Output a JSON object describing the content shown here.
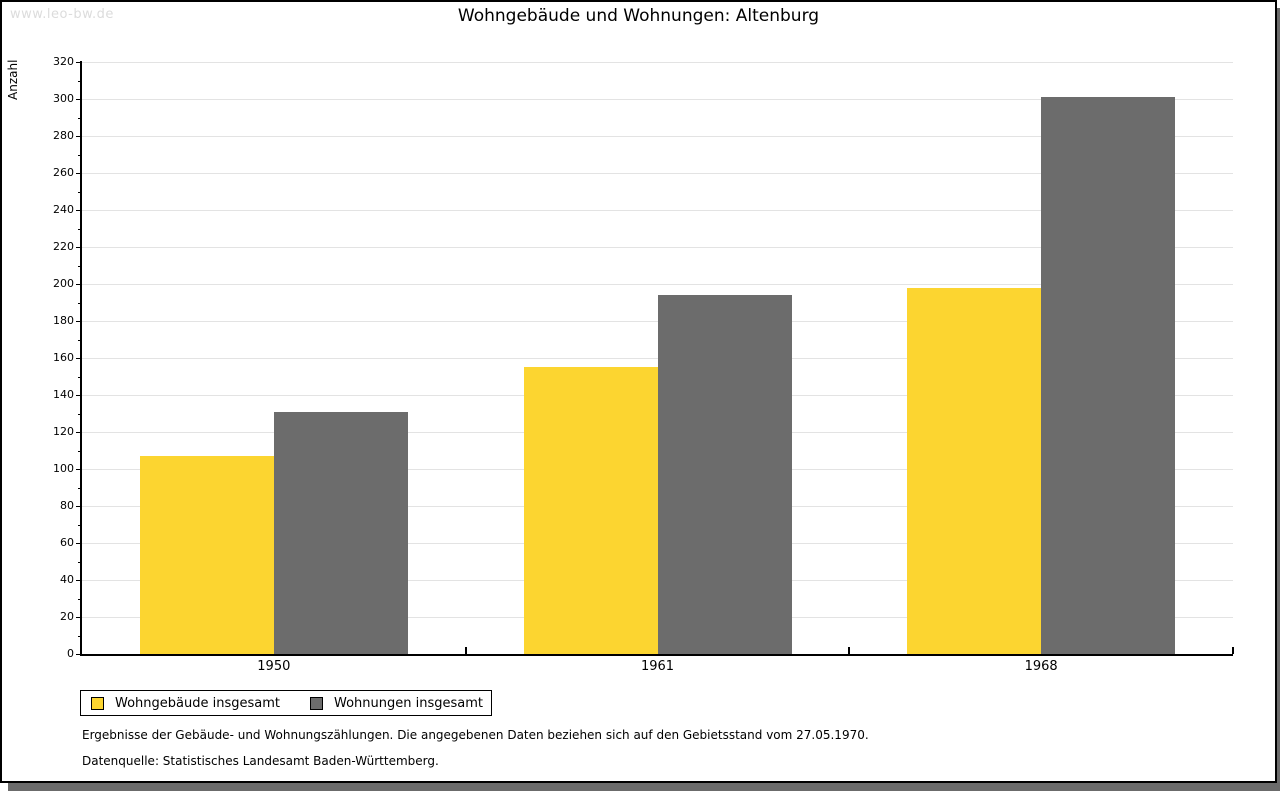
{
  "watermark": "www.leo-bw.de",
  "title": "Wohngebäude und Wohnungen: Altenburg",
  "chart_data": {
    "type": "bar",
    "title": "Wohngebäude und Wohnungen: Altenburg",
    "categories": [
      "1950",
      "1961",
      "1968"
    ],
    "series": [
      {
        "name": "Wohngebäude insgesamt",
        "color": "#fcd530",
        "values": [
          107,
          155,
          198
        ]
      },
      {
        "name": "Wohnungen insgesamt",
        "color": "#6c6c6c",
        "values": [
          131,
          194,
          301
        ]
      }
    ],
    "xlabel": "",
    "ylabel": "Anzahl",
    "ylim": [
      0,
      320
    ],
    "ytick_step": 20,
    "yminor_step": 10,
    "grid": true,
    "legend_position": "bottom-left"
  },
  "footnotes": [
    "Ergebnisse der Gebäude- und Wohnungszählungen. Die angegebenen Daten beziehen sich auf den Gebietsstand vom 27.05.1970.",
    "Datenquelle: Statistisches Landesamt Baden-Württemberg."
  ],
  "colors": {
    "bar_yellow": "#fcd530",
    "bar_gray": "#6c6c6c",
    "gridline": "#e3e3e3",
    "axis": "#000000",
    "watermark": "#dcdcdc",
    "frame_shadow": "#6b6b6b"
  }
}
